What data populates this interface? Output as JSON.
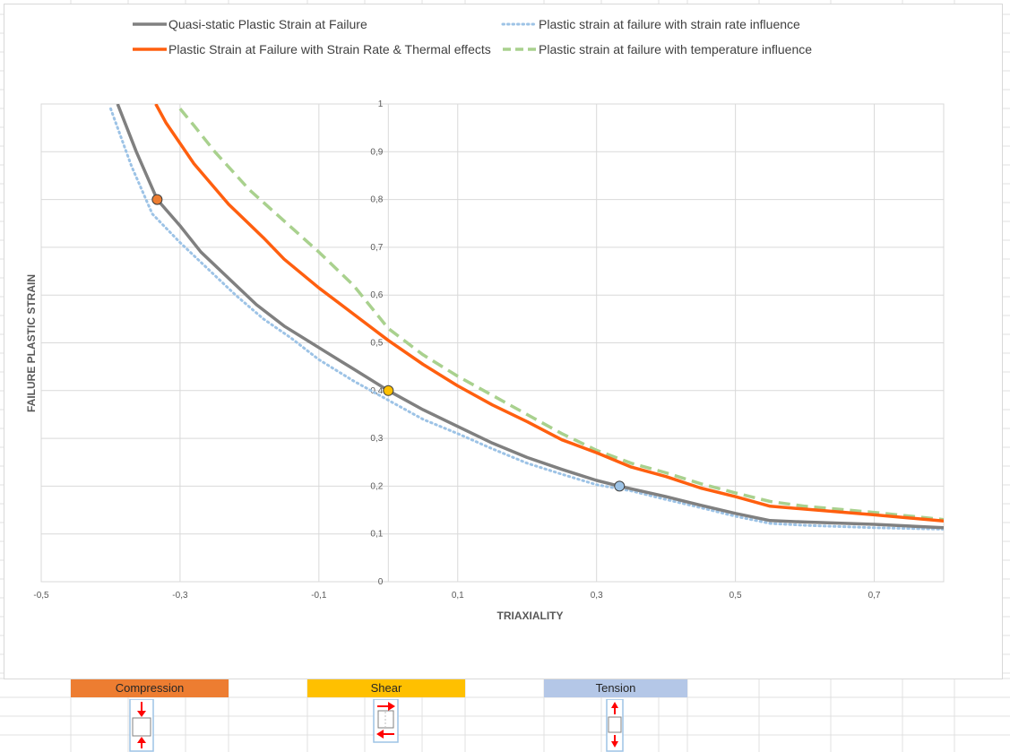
{
  "colors": {
    "quasi_static": "#808080",
    "strain_rate": "#9dc3e6",
    "rate_thermal": "#ff5f0f",
    "temperature": "#a9d18e",
    "gridline": "#d9d9d9",
    "compression": "#ed7d31",
    "shear": "#ffc000",
    "tension": "#b4c7e7",
    "arrow": "#ff0000"
  },
  "chart_data": {
    "type": "line",
    "xlabel": "TRIAXIALITY",
    "ylabel": "FAILURE PLASTIC STRAIN",
    "xlim": [
      -0.5,
      0.8
    ],
    "ylim": [
      0,
      1
    ],
    "x_tick_labels": [
      "-0,5",
      "-0,3",
      "-0,1",
      "0,1",
      "0,3",
      "0,5",
      "0,7"
    ],
    "y_tick_labels": [
      "0",
      "0,1",
      "0,2",
      "0,3",
      "0,4",
      "0,5",
      "0,6",
      "0,7",
      "0,8",
      "0,9",
      "1"
    ],
    "grid": true,
    "legend_position": "top",
    "series": [
      {
        "name": "Quasi-static Plastic Strain at Failure",
        "style": "solid",
        "color": "#808080",
        "points": [
          [
            -0.39,
            1.0
          ],
          [
            -0.363,
            0.9
          ],
          [
            -0.333,
            0.8
          ],
          [
            -0.3,
            0.745
          ],
          [
            -0.27,
            0.69
          ],
          [
            -0.23,
            0.635
          ],
          [
            -0.19,
            0.58
          ],
          [
            -0.15,
            0.535
          ],
          [
            -0.1,
            0.49
          ],
          [
            -0.05,
            0.445
          ],
          [
            0.0,
            0.4
          ],
          [
            0.05,
            0.36
          ],
          [
            0.1,
            0.325
          ],
          [
            0.15,
            0.29
          ],
          [
            0.2,
            0.26
          ],
          [
            0.25,
            0.235
          ],
          [
            0.3,
            0.212
          ],
          [
            0.333,
            0.2
          ],
          [
            0.4,
            0.178
          ],
          [
            0.45,
            0.16
          ],
          [
            0.5,
            0.143
          ],
          [
            0.55,
            0.128
          ],
          [
            0.6,
            0.125
          ],
          [
            0.7,
            0.12
          ],
          [
            0.8,
            0.113
          ]
        ]
      },
      {
        "name": "Plastic strain at failure with strain rate influence",
        "style": "dotted",
        "color": "#9dc3e6",
        "points": [
          [
            -0.4,
            0.99
          ],
          [
            -0.37,
            0.87
          ],
          [
            -0.34,
            0.77
          ],
          [
            -0.3,
            0.71
          ],
          [
            -0.26,
            0.655
          ],
          [
            -0.22,
            0.6
          ],
          [
            -0.18,
            0.55
          ],
          [
            -0.14,
            0.51
          ],
          [
            -0.1,
            0.465
          ],
          [
            -0.05,
            0.42
          ],
          [
            0.0,
            0.38
          ],
          [
            0.05,
            0.34
          ],
          [
            0.1,
            0.31
          ],
          [
            0.15,
            0.278
          ],
          [
            0.2,
            0.248
          ],
          [
            0.25,
            0.225
          ],
          [
            0.3,
            0.203
          ],
          [
            0.35,
            0.19
          ],
          [
            0.4,
            0.172
          ],
          [
            0.45,
            0.155
          ],
          [
            0.5,
            0.137
          ],
          [
            0.55,
            0.122
          ],
          [
            0.6,
            0.118
          ],
          [
            0.7,
            0.113
          ],
          [
            0.8,
            0.11
          ]
        ]
      },
      {
        "name": "Plastic Strain at Failure with Strain Rate & Thermal effects",
        "style": "solid",
        "color": "#ff5f0f",
        "points": [
          [
            -0.335,
            1.0
          ],
          [
            -0.32,
            0.96
          ],
          [
            -0.28,
            0.875
          ],
          [
            -0.23,
            0.79
          ],
          [
            -0.18,
            0.72
          ],
          [
            -0.15,
            0.675
          ],
          [
            -0.1,
            0.615
          ],
          [
            -0.05,
            0.56
          ],
          [
            0.0,
            0.505
          ],
          [
            0.05,
            0.455
          ],
          [
            0.1,
            0.41
          ],
          [
            0.15,
            0.37
          ],
          [
            0.2,
            0.335
          ],
          [
            0.25,
            0.297
          ],
          [
            0.3,
            0.27
          ],
          [
            0.35,
            0.24
          ],
          [
            0.4,
            0.22
          ],
          [
            0.45,
            0.196
          ],
          [
            0.5,
            0.178
          ],
          [
            0.55,
            0.158
          ],
          [
            0.6,
            0.152
          ],
          [
            0.7,
            0.14
          ],
          [
            0.8,
            0.127
          ]
        ]
      },
      {
        "name": "Plastic strain at failure with temperature influence",
        "style": "dashed",
        "color": "#a9d18e",
        "points": [
          [
            -0.3,
            0.99
          ],
          [
            -0.28,
            0.955
          ],
          [
            -0.25,
            0.9
          ],
          [
            -0.2,
            0.82
          ],
          [
            -0.15,
            0.755
          ],
          [
            -0.1,
            0.69
          ],
          [
            -0.05,
            0.62
          ],
          [
            0.0,
            0.53
          ],
          [
            0.05,
            0.475
          ],
          [
            0.1,
            0.43
          ],
          [
            0.15,
            0.39
          ],
          [
            0.2,
            0.35
          ],
          [
            0.25,
            0.31
          ],
          [
            0.3,
            0.275
          ],
          [
            0.35,
            0.248
          ],
          [
            0.4,
            0.228
          ],
          [
            0.45,
            0.205
          ],
          [
            0.5,
            0.186
          ],
          [
            0.55,
            0.168
          ],
          [
            0.6,
            0.158
          ],
          [
            0.7,
            0.145
          ],
          [
            0.8,
            0.13
          ]
        ]
      }
    ],
    "markers": [
      {
        "x": -0.333,
        "y": 0.8,
        "color": "#ed7d31"
      },
      {
        "x": 0.0,
        "y": 0.4,
        "color": "#ffc000"
      },
      {
        "x": 0.333,
        "y": 0.2,
        "color": "#9dc3e6"
      }
    ]
  },
  "load_modes": [
    {
      "label": "Compression",
      "icon": "compression-arrows-icon"
    },
    {
      "label": "Shear",
      "icon": "shear-arrows-icon"
    },
    {
      "label": "Tension",
      "icon": "tension-arrows-icon"
    }
  ]
}
